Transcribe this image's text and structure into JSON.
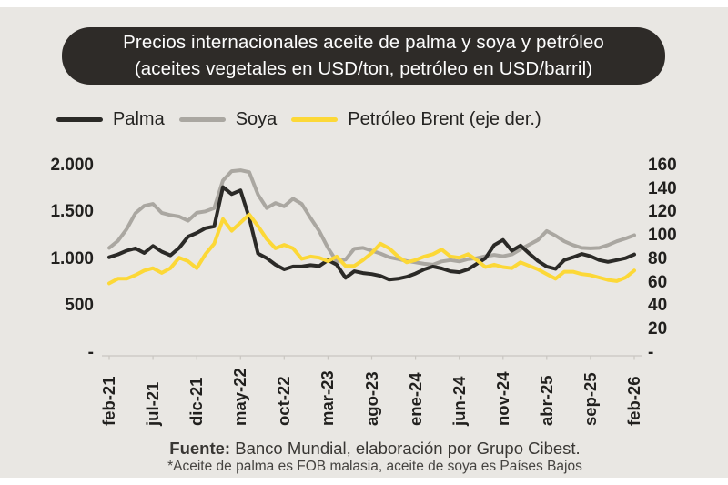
{
  "header": {
    "title_line1": "Precios internacionales aceite de palma y soya y petróleo",
    "title_line2": "(aceites vegetales en USD/ton, petróleo en USD/barril)"
  },
  "colors": {
    "panel_background": "#e9e7e3",
    "title_box_background": "#2e2b28",
    "title_text": "#fdfdfd",
    "palma_line": "#2b2a27",
    "soya_line": "#aaa7a1",
    "brent_line": "#fcd837",
    "axis_text": "#21201e"
  },
  "axes": {
    "left_ticks": [
      "2.000",
      "1.500",
      "1.000",
      "500",
      "-"
    ],
    "right_ticks": [
      "160",
      "140",
      "120",
      "100",
      "80",
      "60",
      "40",
      "20",
      "-"
    ],
    "x_ticks": [
      "feb-21",
      "jul-21",
      "dic-21",
      "may-22",
      "oct-22",
      "mar-23",
      "ago-23",
      "ene-24",
      "jun-24",
      "nov-24",
      "abr-25",
      "sep-25",
      "feb-26"
    ]
  },
  "footer": {
    "source_label": "Fuente:",
    "source_text": " Banco Mundial, elaboración por Grupo Cibest.",
    "footnote": "*Aceite de palma es FOB malasia, aceite de soya es Países Bajos"
  },
  "chart_data": {
    "type": "line",
    "title": "Precios internacionales aceite de palma y soya y petróleo (aceites vegetales en USD/ton, petróleo en USD/barril)",
    "xlabel": "",
    "ylabel_left": "USD/ton",
    "ylabel_right": "USD/barril",
    "ylim_left": [
      0,
      2000
    ],
    "ylim_right": [
      0,
      160
    ],
    "left_tick_step": 500,
    "right_tick_step": 20,
    "grid": false,
    "legend_position": "top",
    "x_tick_labels": [
      "feb-21",
      "jul-21",
      "dic-21",
      "may-22",
      "oct-22",
      "mar-23",
      "ago-23",
      "ene-24",
      "jun-24",
      "nov-24",
      "abr-25",
      "sep-25",
      "feb-26"
    ],
    "x": [
      "feb-21",
      "mar-21",
      "abr-21",
      "may-21",
      "jun-21",
      "jul-21",
      "ago-21",
      "sep-21",
      "oct-21",
      "nov-21",
      "dic-21",
      "ene-22",
      "feb-22",
      "mar-22",
      "abr-22",
      "may-22",
      "jun-22",
      "jul-22",
      "ago-22",
      "sep-22",
      "oct-22",
      "nov-22",
      "dic-22",
      "ene-23",
      "feb-23",
      "mar-23",
      "abr-23",
      "may-23",
      "jun-23",
      "jul-23",
      "ago-23",
      "sep-23",
      "oct-23",
      "nov-23",
      "dic-23",
      "ene-24",
      "feb-24",
      "mar-24",
      "abr-24",
      "may-24",
      "jun-24",
      "jul-24",
      "ago-24",
      "sep-24",
      "oct-24",
      "nov-24",
      "dic-24",
      "ene-25",
      "feb-25",
      "mar-25",
      "abr-25",
      "may-25",
      "jun-25",
      "jul-25",
      "ago-25",
      "sep-25",
      "oct-25",
      "nov-25",
      "dic-25",
      "ene-26",
      "feb-26"
    ],
    "series": [
      {
        "id": "palma",
        "name": "Palma",
        "axis": "left",
        "unit": "USD/ton",
        "color": "#2b2a27",
        "values": [
          1030,
          1060,
          1100,
          1125,
          1075,
          1150,
          1090,
          1050,
          1130,
          1250,
          1290,
          1340,
          1360,
          1780,
          1705,
          1745,
          1450,
          1070,
          1020,
          950,
          900,
          930,
          930,
          945,
          935,
          1000,
          950,
          810,
          880,
          860,
          850,
          830,
          790,
          800,
          820,
          855,
          900,
          930,
          910,
          880,
          870,
          900,
          960,
          1020,
          1160,
          1215,
          1100,
          1155,
          1070,
          990,
          930,
          905,
          1000,
          1030,
          1065,
          1040,
          1000,
          980,
          1000,
          1020,
          1060
        ]
      },
      {
        "id": "soya",
        "name": "Soya",
        "axis": "left",
        "unit": "USD/ton",
        "color": "#aaa7a1",
        "values": [
          1130,
          1205,
          1330,
          1500,
          1580,
          1600,
          1505,
          1480,
          1465,
          1420,
          1505,
          1520,
          1555,
          1850,
          1950,
          1960,
          1940,
          1700,
          1555,
          1610,
          1575,
          1655,
          1600,
          1450,
          1310,
          1130,
          985,
          1005,
          1120,
          1130,
          1100,
          1070,
          1030,
          1010,
          990,
          975,
          960,
          950,
          985,
          1000,
          985,
          1010,
          1020,
          1040,
          1055,
          1040,
          1060,
          1115,
          1165,
          1215,
          1310,
          1260,
          1200,
          1160,
          1130,
          1125,
          1130,
          1160,
          1200,
          1230,
          1265
        ]
      },
      {
        "id": "brent",
        "name": "Petróleo Brent (eje der.)",
        "axis": "right",
        "unit": "USD/barril",
        "color": "#fcd837",
        "values": [
          60,
          64,
          64,
          67,
          71,
          73,
          69,
          73,
          82,
          79,
          73,
          85,
          94,
          115,
          105,
          112,
          119,
          109,
          98,
          90,
          93,
          90,
          81,
          83,
          82,
          79,
          83,
          75,
          75,
          80,
          86,
          94,
          90,
          83,
          78,
          80,
          83,
          85,
          89,
          83,
          82,
          85,
          80,
          74,
          76,
          74,
          73,
          78,
          75,
          72,
          68,
          64,
          70,
          70,
          68,
          67,
          65,
          63,
          62,
          65,
          71
        ]
      }
    ]
  }
}
